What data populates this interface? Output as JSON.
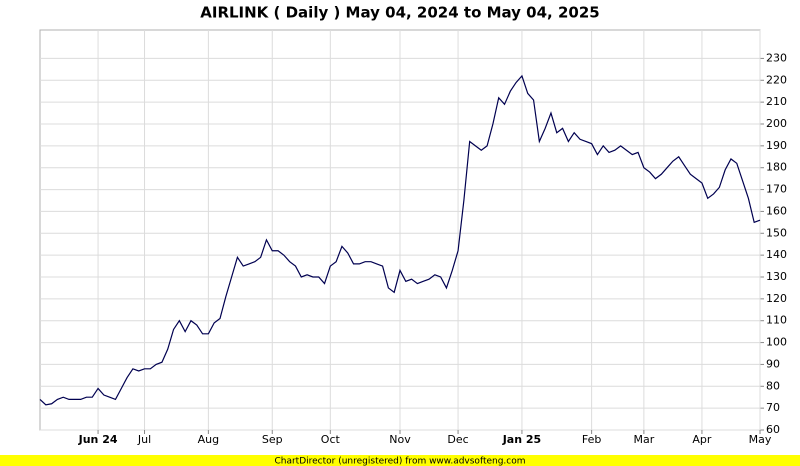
{
  "chart_data": {
    "type": "line",
    "title": "AIRLINK ( Daily ) May 04, 2024 to May 04, 2025",
    "categories": [
      null,
      null,
      null,
      null,
      null,
      null,
      null,
      null,
      null,
      null,
      "Jun 24",
      null,
      null,
      null,
      null,
      null,
      null,
      null,
      "Jul",
      null,
      null,
      null,
      null,
      null,
      null,
      null,
      null,
      null,
      null,
      "Aug",
      null,
      null,
      null,
      null,
      null,
      null,
      null,
      null,
      null,
      null,
      "Sep",
      null,
      null,
      null,
      null,
      null,
      null,
      null,
      null,
      null,
      "Oct",
      null,
      null,
      null,
      null,
      null,
      null,
      null,
      null,
      null,
      null,
      null,
      "Nov",
      null,
      null,
      null,
      null,
      null,
      null,
      null,
      null,
      null,
      "Dec",
      null,
      null,
      null,
      null,
      null,
      null,
      null,
      null,
      null,
      null,
      "Jan 25",
      null,
      null,
      null,
      null,
      null,
      null,
      null,
      null,
      null,
      null,
      null,
      "Feb",
      null,
      null,
      null,
      null,
      null,
      null,
      null,
      null,
      "Mar",
      null,
      null,
      null,
      null,
      null,
      null,
      null,
      null,
      null,
      "Apr",
      null,
      null,
      null,
      null,
      null,
      null,
      null,
      null,
      null,
      "May"
    ],
    "series": [
      {
        "color": "#000050",
        "values": [
          74,
          71.5,
          72,
          74,
          75,
          74,
          74,
          74,
          75,
          75,
          79,
          76,
          75,
          74,
          79,
          84,
          88,
          87,
          88,
          88,
          90,
          91,
          97,
          106,
          110,
          105,
          110,
          108,
          104,
          104,
          109,
          111,
          121,
          130,
          139,
          135,
          136,
          137,
          139,
          147,
          142,
          142,
          140,
          137,
          135,
          130,
          131,
          130,
          130,
          127,
          135,
          137,
          144,
          141,
          136,
          136,
          137,
          137,
          136,
          135,
          125,
          123,
          133,
          128,
          129,
          127,
          128,
          129,
          131,
          130,
          125,
          133,
          142,
          165,
          192,
          190,
          188,
          190,
          200,
          212,
          209,
          215,
          219,
          222,
          214,
          211,
          192,
          198,
          205,
          196,
          198,
          192,
          196,
          193,
          192,
          191,
          186,
          190,
          187,
          188,
          190,
          188,
          186,
          187,
          180,
          178,
          175,
          177,
          180,
          183,
          185,
          181,
          177,
          175,
          173,
          166,
          168,
          171,
          179,
          184,
          182,
          174,
          166,
          155,
          156
        ]
      }
    ],
    "ylim": [
      60,
      243
    ],
    "yticks": [
      60,
      70,
      80,
      90,
      100,
      110,
      120,
      130,
      140,
      150,
      160,
      170,
      180,
      190,
      200,
      210,
      220,
      230
    ],
    "grid": true,
    "footer": "ChartDirector (unregistered) from www.advsofteng.com"
  }
}
